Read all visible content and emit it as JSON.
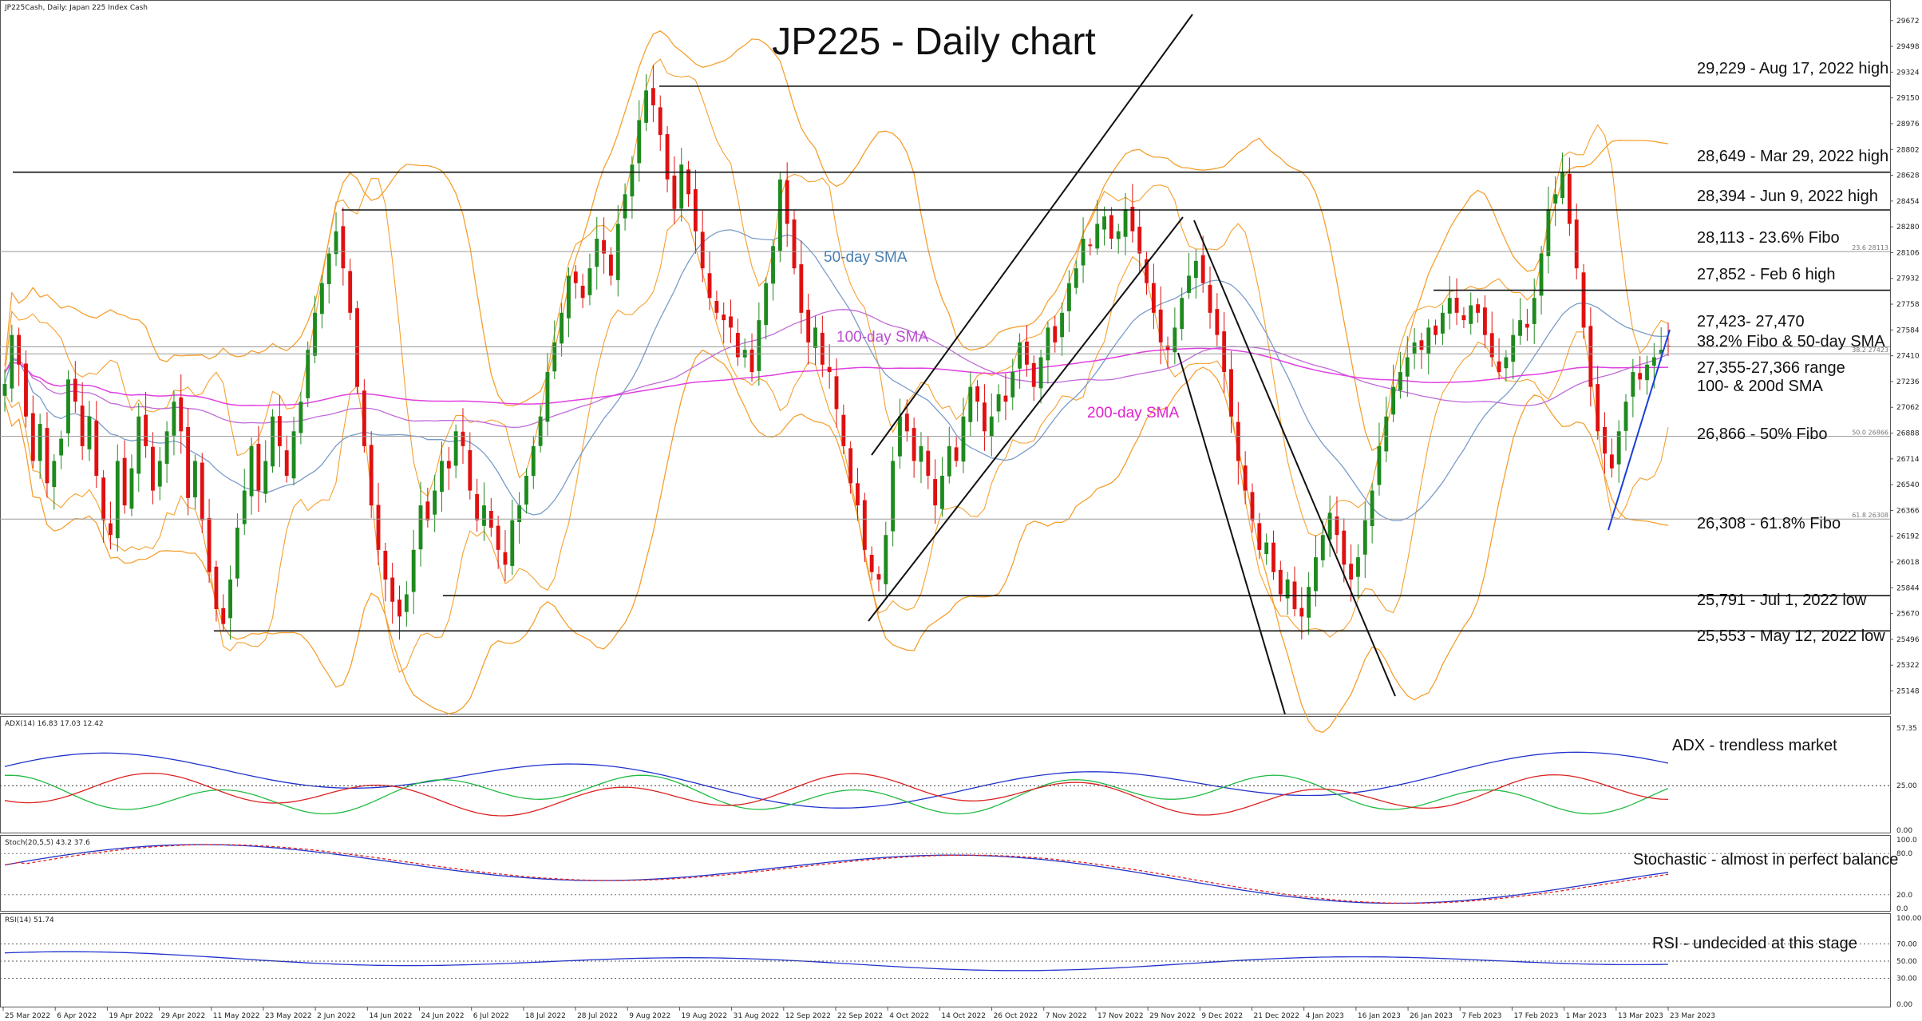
{
  "chart_data": {
    "type": "candlestick",
    "symbol_header": "JP225Cash, Daily:  Japan 225 Index Cash",
    "title": "JP225 - Daily chart",
    "main_panel": {
      "ylim": [
        25000,
        29800
      ],
      "y_ticks": [
        "29672",
        "29498",
        "29324",
        "29150",
        "28976",
        "28802",
        "28628",
        "28454",
        "28280",
        "28106",
        "27932",
        "27758",
        "27584",
        "27410",
        "27236",
        "27062",
        "26888",
        "26714",
        "26540",
        "26366",
        "26192",
        "26018",
        "25844",
        "25670",
        "25496",
        "25322",
        "25148"
      ],
      "close_series": [
        27220,
        27550,
        27350,
        27000,
        26700,
        26950,
        26550,
        26700,
        26850,
        27250,
        27100,
        26800,
        27000,
        26600,
        26300,
        26200,
        26700,
        26400,
        26650,
        27000,
        26800,
        26500,
        26700,
        26900,
        27100,
        26900,
        26450,
        26700,
        26300,
        25950,
        25700,
        25600,
        25900,
        26250,
        26500,
        26800,
        26500,
        26700,
        27000,
        26800,
        26600,
        26900,
        27100,
        27450,
        27700,
        27900,
        28100,
        28250,
        28000,
        27700,
        27200,
        26800,
        26400,
        26100,
        25900,
        25750,
        25650,
        25800,
        26100,
        26400,
        26300,
        26500,
        26700,
        26650,
        26900,
        26800,
        26500,
        26300,
        26400,
        26250,
        26100,
        26000,
        26300,
        26400,
        26600,
        26800,
        27000,
        27300,
        27500,
        27700,
        27950,
        27900,
        27800,
        28000,
        28200,
        28100,
        27950,
        28300,
        28500,
        28700,
        29000,
        29200,
        29100,
        28900,
        28600,
        28400,
        28700,
        28500,
        28250,
        28000,
        27800,
        27700,
        27650,
        27600,
        27400,
        27450,
        27300,
        27650,
        27900,
        28150,
        28600,
        28300,
        28000,
        27700,
        27500,
        27600,
        27350,
        27300,
        27050,
        26800,
        26550,
        26400,
        26100,
        25950,
        25900,
        26200,
        26700,
        27000,
        26900,
        26700,
        26800,
        26600,
        26400,
        26600,
        26800,
        26700,
        27000,
        27200,
        27100,
        26900,
        27000,
        27150,
        27100,
        27300,
        27500,
        27350,
        27200,
        27400,
        27600,
        27500,
        27700,
        27900,
        28000,
        28200,
        28150,
        28300,
        28350,
        28200,
        28250,
        28400,
        28250,
        28100,
        27900,
        27700,
        27500,
        27450,
        27600,
        27800,
        27950,
        28050,
        27900,
        27700,
        27550,
        27300,
        27000,
        26700,
        26500,
        26300,
        26100,
        26150,
        25950,
        25800,
        25900,
        25700,
        25650,
        25850,
        26050,
        26200,
        26350,
        26200,
        26000,
        25900,
        26050,
        26300,
        26500,
        26800,
        27000,
        27200,
        27300,
        27400,
        27500,
        27450,
        27600,
        27550,
        27700,
        27800,
        27700,
        27650,
        27750,
        27700,
        27550,
        27400,
        27300,
        27400,
        27550,
        27650,
        27600,
        27800,
        28100,
        28400,
        28500,
        28650,
        28300,
        28000,
        27600,
        27200,
        26900,
        26750,
        26650,
        26900,
        27100,
        27300,
        27250,
        27350,
        27400,
        27450,
        27470
      ],
      "price_lines": [
        {
          "value": 29229,
          "label": "29,229 - Aug 17, 2022 high"
        },
        {
          "value": 28649,
          "label": "28,649 - Mar 29, 2022 high"
        },
        {
          "value": 28394,
          "label": "28,394 - Jun 9, 2022 high"
        },
        {
          "value": 28113,
          "label": "28,113 - 23.6% Fibo",
          "side_label": "23.6 28113"
        },
        {
          "value": 27852,
          "label": "27,852 - Feb 6 high"
        },
        {
          "value": 27470,
          "label": "27,423- 27,470"
        },
        {
          "value": 27423,
          "label": "38.2% Fibo & 50-day SMA",
          "side_label": "38.2 27423"
        },
        {
          "value": 27360,
          "label": "27,355-27,366 range"
        },
        {
          "value": 27260,
          "label": "100- & 200d SMA"
        },
        {
          "value": 26866,
          "label": "26,866 - 50% Fibo",
          "side_label": "50.0 26866"
        },
        {
          "value": 26308,
          "label": "26,308 - 61.8% Fibo",
          "side_label": "61.8 26308"
        },
        {
          "value": 25791,
          "label": "25,791 - Jul 1, 2022 low"
        },
        {
          "value": 25553,
          "label": "25,553 - May 12, 2022 low"
        }
      ],
      "indicator_labels": [
        {
          "text": "50-day SMA",
          "color": "#4a7fb0"
        },
        {
          "text": "100-day SMA",
          "color": "#b94fd0"
        },
        {
          "text": "200-day SMA",
          "color": "#e020d0"
        }
      ],
      "colors": {
        "up": "#1e8a1e",
        "down": "#e01010",
        "bands": "#f5a030",
        "sma50": "#7a9cc8",
        "sma100": "#c06ad8",
        "sma200": "#e040e0"
      }
    },
    "adx_panel": {
      "header": "ADX(14) 16.83 17.03 12.42",
      "annotation": "ADX - trendless market",
      "y_ticks": [
        "57.35",
        "25.00",
        "0.00"
      ],
      "level": 25
    },
    "stoch_panel": {
      "header": "Stoch(20,5,5) 43.2 37.6",
      "annotation": "Stochastic - almost in perfect balance",
      "y_ticks": [
        "100.0",
        "80.0",
        "20.0",
        "0.0"
      ]
    },
    "rsi_panel": {
      "header": "RSI(14) 51.74",
      "annotation": "RSI - undecided at this stage",
      "y_ticks": [
        "100.00",
        "70.00",
        "50.00",
        "30.00",
        "0.00"
      ]
    },
    "x_ticks": [
      "25 Mar 2022",
      "6 Apr 2022",
      "19 Apr 2022",
      "29 Apr 2022",
      "11 May 2022",
      "23 May 2022",
      "2 Jun 2022",
      "14 Jun 2022",
      "24 Jun 2022",
      "6 Jul 2022",
      "18 Jul 2022",
      "28 Jul 2022",
      "9 Aug 2022",
      "19 Aug 2022",
      "31 Aug 2022",
      "12 Sep 2022",
      "22 Sep 2022",
      "4 Oct 2022",
      "14 Oct 2022",
      "26 Oct 2022",
      "7 Nov 2022",
      "17 Nov 2022",
      "29 Nov 2022",
      "9 Dec 2022",
      "21 Dec 2022",
      "4 Jan 2023",
      "16 Jan 2023",
      "26 Jan 2023",
      "7 Feb 2023",
      "17 Feb 2023",
      "1 Mar 2023",
      "13 Mar 2023",
      "23 Mar 2023"
    ]
  }
}
